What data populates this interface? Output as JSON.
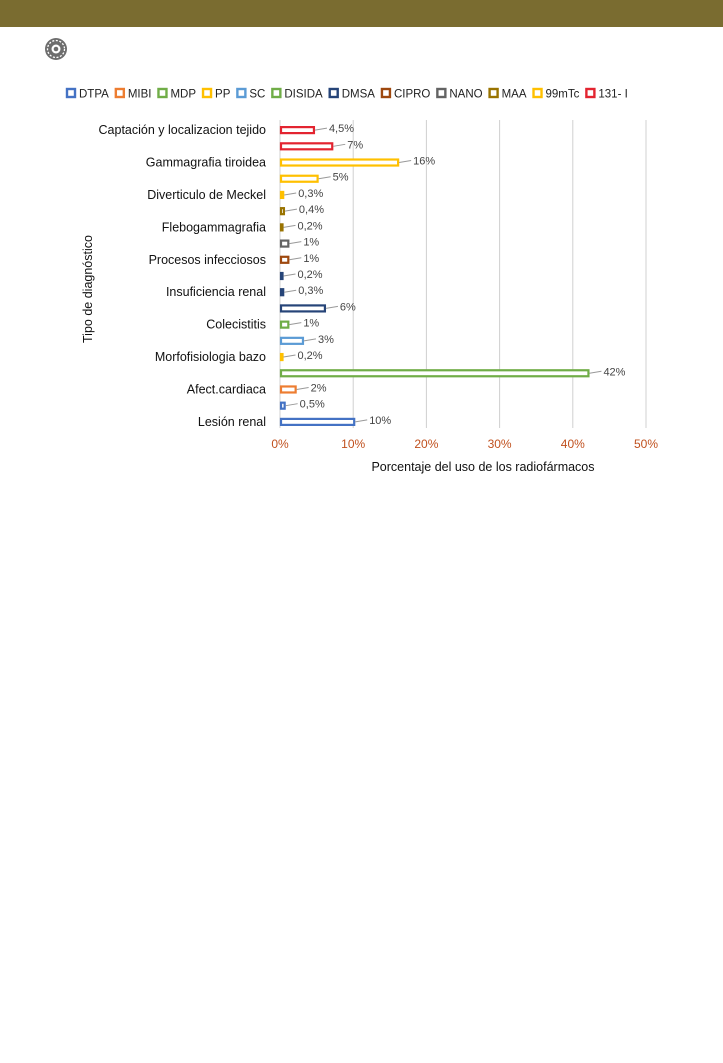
{
  "colors": {
    "header_bar": "#7a6c30",
    "grid": "#d0d0d0",
    "tick_label": "#c0501e",
    "leader": "#999999"
  },
  "header": {
    "logo_icon": "gear-seal-icon"
  },
  "chart_data": {
    "type": "bar",
    "orientation": "horizontal",
    "title": "",
    "xlabel": "Porcentaje del uso de los radiofármacos",
    "ylabel": "Tipo de diagnóstico",
    "xlim": [
      0,
      50
    ],
    "x_ticks": [
      "0%",
      "10%",
      "20%",
      "30%",
      "40%",
      "50%"
    ],
    "grid": true,
    "legend_position": "top",
    "legend": [
      {
        "name": "DTPA",
        "color": "#4472c4"
      },
      {
        "name": "MIBI",
        "color": "#ed7d31"
      },
      {
        "name": "MDP",
        "color": "#70ad47"
      },
      {
        "name": "PP",
        "color": "#ffc000"
      },
      {
        "name": "SC",
        "color": "#5b9bd5"
      },
      {
        "name": "DISIDA",
        "color": "#70ad47"
      },
      {
        "name": "DMSA",
        "color": "#264478"
      },
      {
        "name": "CIPRO",
        "color": "#9e480e"
      },
      {
        "name": "NANO",
        "color": "#636363"
      },
      {
        "name": "MAA",
        "color": "#997300"
      },
      {
        "name": "99mTc",
        "color": "#ffc000"
      },
      {
        "name": "131- I",
        "color": "#e32430"
      }
    ],
    "categories": [
      "Captación y localizacion tejido",
      "Gammagrafia tiroidea",
      "Diverticulo de Meckel",
      "Flebogammagrafia",
      "Procesos infecciosos",
      "Insuficiencia renal",
      "Colecistitis",
      "Morfofisiologia bazo",
      "Afect.cardiaca",
      "Lesión renal"
    ],
    "bars": [
      {
        "category": "Captación y localizacion tejido",
        "series": "131- I",
        "value": 4.5,
        "label": "4,5%"
      },
      {
        "category": "",
        "series": "131- I",
        "value": 7,
        "label": "7%"
      },
      {
        "category": "Gammagrafia tiroidea",
        "series": "99mTc",
        "value": 16,
        "label": "16%"
      },
      {
        "category": "",
        "series": "99mTc",
        "value": 5,
        "label": "5%"
      },
      {
        "category": "Diverticulo de Meckel",
        "series": "99mTc",
        "value": 0.3,
        "label": "0,3%"
      },
      {
        "category": "",
        "series": "MAA",
        "value": 0.4,
        "label": "0,4%"
      },
      {
        "category": "Flebogammagrafia",
        "series": "MAA",
        "value": 0.2,
        "label": "0,2%"
      },
      {
        "category": "",
        "series": "NANO",
        "value": 1,
        "label": "1%"
      },
      {
        "category": "Procesos infecciosos",
        "series": "CIPRO",
        "value": 1,
        "label": "1%"
      },
      {
        "category": "",
        "series": "DMSA",
        "value": 0.2,
        "label": "0,2%"
      },
      {
        "category": "Insuficiencia renal",
        "series": "DMSA",
        "value": 0.3,
        "label": "0,3%"
      },
      {
        "category": "",
        "series": "DMSA",
        "value": 6,
        "label": "6%"
      },
      {
        "category": "Colecistitis",
        "series": "DISIDA",
        "value": 1,
        "label": "1%"
      },
      {
        "category": "",
        "series": "SC",
        "value": 3,
        "label": "3%"
      },
      {
        "category": "Morfofisiologia bazo",
        "series": "PP",
        "value": 0.2,
        "label": "0,2%"
      },
      {
        "category": "",
        "series": "MDP",
        "value": 42,
        "label": "42%"
      },
      {
        "category": "Afect.cardiaca",
        "series": "MIBI",
        "value": 2,
        "label": "2%"
      },
      {
        "category": "",
        "series": "DTPA",
        "value": 0.5,
        "label": "0,5%"
      },
      {
        "category": "Lesión renal",
        "series": "DTPA",
        "value": 10,
        "label": "10%"
      }
    ]
  }
}
